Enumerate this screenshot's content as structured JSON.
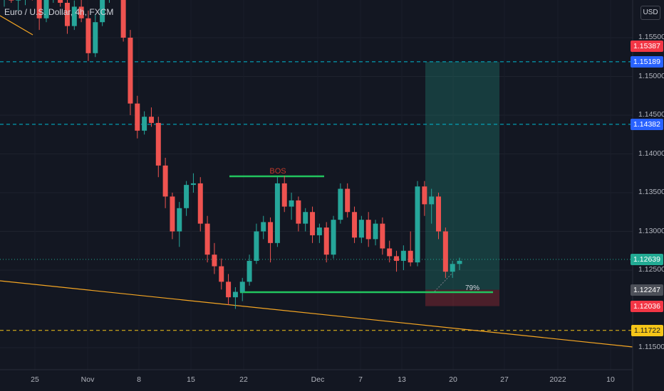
{
  "title": "Euro / U.S. Dollar, 4h, FXCM",
  "currency_button": "USD",
  "chart_data": {
    "type": "candlestick",
    "x_tick_labels": [
      "25",
      "Nov",
      "8",
      "15",
      "22",
      "Dec",
      "7",
      "13",
      "20",
      "27",
      "2022",
      "10"
    ],
    "y_tick_labels": [
      "1.15500",
      "1.15000",
      "1.14500",
      "1.14000",
      "1.13500",
      "1.13000",
      "1.12500",
      "1.11500"
    ],
    "ylim": [
      1.11,
      1.161
    ],
    "price_tags": [
      {
        "label": "1.15387",
        "value": 1.15387,
        "color": "#f23645"
      },
      {
        "label": "1.15189",
        "value": 1.15189,
        "color": "#2962ff"
      },
      {
        "label": "1.14382",
        "value": 1.14382,
        "color": "#2962ff"
      },
      {
        "label": "1.12639",
        "value": 1.12639,
        "color": "#22ab94"
      },
      {
        "label": "1.12247",
        "value": 1.12247,
        "color": "#4c4f58"
      },
      {
        "label": "1.12036",
        "value": 1.12036,
        "color": "#f23645"
      },
      {
        "label": "1.11722",
        "value": 1.11722,
        "color": "#f5c518"
      }
    ],
    "horizontal_lines": [
      {
        "value": 1.15189,
        "color": "#00bcd4",
        "style": "dashed"
      },
      {
        "value": 1.14382,
        "color": "#00bcd4",
        "style": "dashed"
      },
      {
        "value": 1.11722,
        "color": "#f5c518",
        "style": "dashed"
      },
      {
        "value": 1.12639,
        "color": "#22ab94",
        "style": "dotted"
      }
    ],
    "annotations": [
      {
        "text": "BOS",
        "color": "#c0392b"
      },
      {
        "text": "79%",
        "color": "#d1d4dc"
      }
    ],
    "position_tool": {
      "entry": 1.12247,
      "target": 1.15189,
      "stop": 1.12036
    },
    "trendline": {
      "color": "#f5a623"
    },
    "candles": [
      [
        1.16,
        1.161,
        1.159,
        1.1605
      ],
      [
        1.1605,
        1.1612,
        1.1595,
        1.1598
      ],
      [
        1.1598,
        1.1608,
        1.1585,
        1.16
      ],
      [
        1.16,
        1.1615,
        1.1592,
        1.161
      ],
      [
        1.161,
        1.1618,
        1.1598,
        1.1602
      ],
      [
        1.1602,
        1.1606,
        1.156,
        1.1575
      ],
      [
        1.1575,
        1.161,
        1.157,
        1.1605
      ],
      [
        1.1605,
        1.162,
        1.1595,
        1.1612
      ],
      [
        1.1612,
        1.162,
        1.159,
        1.1595
      ],
      [
        1.1595,
        1.1605,
        1.1555,
        1.1565
      ],
      [
        1.1565,
        1.1598,
        1.156,
        1.159
      ],
      [
        1.159,
        1.16,
        1.157,
        1.1575
      ],
      [
        1.1575,
        1.1585,
        1.152,
        1.153
      ],
      [
        1.153,
        1.158,
        1.1525,
        1.157
      ],
      [
        1.157,
        1.1605,
        1.1565,
        1.16
      ],
      [
        1.16,
        1.1625,
        1.1595,
        1.162
      ],
      [
        1.162,
        1.1625,
        1.16,
        1.1605
      ],
      [
        1.1605,
        1.1612,
        1.1545,
        1.155
      ],
      [
        1.155,
        1.156,
        1.145,
        1.1465
      ],
      [
        1.1465,
        1.1475,
        1.142,
        1.143
      ],
      [
        1.143,
        1.1455,
        1.1425,
        1.1448
      ],
      [
        1.1448,
        1.146,
        1.1435,
        1.144
      ],
      [
        1.144,
        1.1448,
        1.137,
        1.1385
      ],
      [
        1.1385,
        1.1395,
        1.133,
        1.1345
      ],
      [
        1.1345,
        1.135,
        1.129,
        1.13
      ],
      [
        1.13,
        1.1338,
        1.128,
        1.133
      ],
      [
        1.133,
        1.1365,
        1.132,
        1.136
      ],
      [
        1.136,
        1.1375,
        1.135,
        1.1362
      ],
      [
        1.1362,
        1.137,
        1.13,
        1.131
      ],
      [
        1.131,
        1.132,
        1.126,
        1.127
      ],
      [
        1.127,
        1.1285,
        1.1245,
        1.1255
      ],
      [
        1.1255,
        1.1265,
        1.1225,
        1.1235
      ],
      [
        1.1235,
        1.1245,
        1.1205,
        1.1215
      ],
      [
        1.1215,
        1.1228,
        1.12,
        1.1222
      ],
      [
        1.1222,
        1.124,
        1.121,
        1.1235
      ],
      [
        1.1235,
        1.127,
        1.123,
        1.1262
      ],
      [
        1.1262,
        1.131,
        1.1258,
        1.13
      ],
      [
        1.13,
        1.132,
        1.129,
        1.1312
      ],
      [
        1.1312,
        1.1318,
        1.126,
        1.1285
      ],
      [
        1.1285,
        1.137,
        1.128,
        1.1362
      ],
      [
        1.1362,
        1.1372,
        1.1325,
        1.1332
      ],
      [
        1.1332,
        1.135,
        1.1315,
        1.134
      ],
      [
        1.134,
        1.1345,
        1.13,
        1.131
      ],
      [
        1.131,
        1.133,
        1.13,
        1.1325
      ],
      [
        1.1325,
        1.1332,
        1.1285,
        1.1295
      ],
      [
        1.1295,
        1.131,
        1.1285,
        1.1305
      ],
      [
        1.1305,
        1.1312,
        1.126,
        1.127
      ],
      [
        1.127,
        1.132,
        1.1265,
        1.1315
      ],
      [
        1.1315,
        1.1362,
        1.131,
        1.1355
      ],
      [
        1.1355,
        1.1362,
        1.1318,
        1.1325
      ],
      [
        1.1325,
        1.1332,
        1.1285,
        1.1292
      ],
      [
        1.1292,
        1.132,
        1.1285,
        1.1315
      ],
      [
        1.1315,
        1.1325,
        1.128,
        1.129
      ],
      [
        1.129,
        1.1315,
        1.1282,
        1.131
      ],
      [
        1.131,
        1.1318,
        1.127,
        1.1278
      ],
      [
        1.1278,
        1.1288,
        1.126,
        1.1268
      ],
      [
        1.1268,
        1.1275,
        1.1248,
        1.1262
      ],
      [
        1.1262,
        1.1282,
        1.125,
        1.1275
      ],
      [
        1.1275,
        1.13,
        1.1255,
        1.126
      ],
      [
        1.126,
        1.1365,
        1.1255,
        1.1358
      ],
      [
        1.1358,
        1.1365,
        1.132,
        1.1335
      ],
      [
        1.1335,
        1.1355,
        1.131,
        1.1345
      ],
      [
        1.1345,
        1.135,
        1.129,
        1.13
      ],
      [
        1.13,
        1.1305,
        1.124,
        1.1248
      ],
      [
        1.1248,
        1.1262,
        1.124,
        1.1258
      ],
      [
        1.1258,
        1.1266,
        1.125,
        1.1262
      ]
    ]
  }
}
